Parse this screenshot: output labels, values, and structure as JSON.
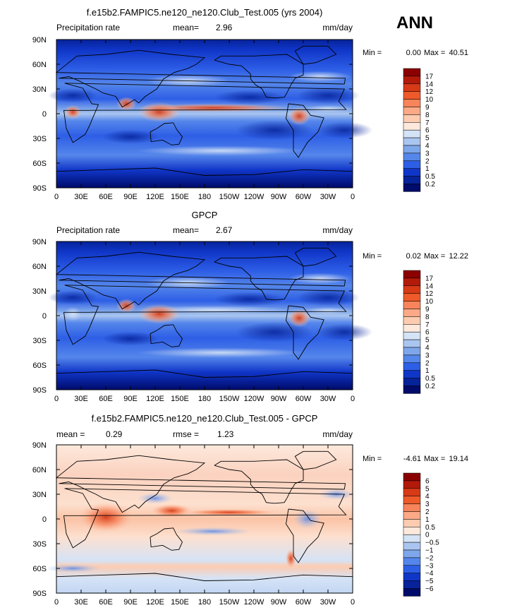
{
  "season": "ANN",
  "chart_data": [
    {
      "type": "heatmap",
      "title": "f.e15b2.FAMPIC5.ne120_ne120.Club_Test.005 (yrs 2004)",
      "variable": "Precipitation rate",
      "units": "mm/day",
      "stat1_label": "mean=",
      "stat1_value": "2.96",
      "stat2_label": "",
      "stat2_value": "",
      "min_label": "Min =",
      "min_value": "0.00",
      "max_label": "Max =",
      "max_value": "40.51",
      "xlabels": [
        "0",
        "30E",
        "60E",
        "90E",
        "120E",
        "150E",
        "180",
        "150W",
        "120W",
        "90W",
        "60W",
        "30W",
        "0"
      ],
      "ylabels": [
        "90N",
        "60N",
        "30N",
        "0",
        "30S",
        "60S",
        "90S"
      ],
      "xlim": [
        0,
        360
      ],
      "ylim": [
        -90,
        90
      ],
      "colorbar_levels": [
        "17",
        "14",
        "12",
        "10",
        "9",
        "8",
        "7",
        "6",
        "5",
        "4",
        "3",
        "2",
        "1",
        "0.5",
        "0.2"
      ],
      "colorbar_colors": [
        "#8b0000",
        "#b21a0a",
        "#d63a16",
        "#ee5a2a",
        "#f7845a",
        "#fba986",
        "#fdcbb0",
        "#fde9dc",
        "#d5e3f6",
        "#aac5ef",
        "#7ea6ea",
        "#5586ea",
        "#2d5ee6",
        "#1036c8",
        "#06239a",
        "#000b6a"
      ]
    },
    {
      "type": "heatmap",
      "title": "GPCP",
      "variable": "Precipitation rate",
      "units": "mm/day",
      "stat1_label": "mean=",
      "stat1_value": "2.67",
      "stat2_label": "",
      "stat2_value": "",
      "min_label": "Min =",
      "min_value": "0.02",
      "max_label": "Max =",
      "max_value": "12.22",
      "xlabels": [
        "0",
        "30E",
        "60E",
        "90E",
        "120E",
        "150E",
        "180",
        "150W",
        "120W",
        "90W",
        "60W",
        "30W",
        "0"
      ],
      "ylabels": [
        "90N",
        "60N",
        "30N",
        "0",
        "30S",
        "60S",
        "90S"
      ],
      "xlim": [
        0,
        360
      ],
      "ylim": [
        -90,
        90
      ],
      "colorbar_levels": [
        "17",
        "14",
        "12",
        "10",
        "9",
        "8",
        "7",
        "6",
        "5",
        "4",
        "3",
        "2",
        "1",
        "0.5",
        "0.2"
      ],
      "colorbar_colors": [
        "#8b0000",
        "#b21a0a",
        "#d63a16",
        "#ee5a2a",
        "#f7845a",
        "#fba986",
        "#fdcbb0",
        "#fde9dc",
        "#d5e3f6",
        "#aac5ef",
        "#7ea6ea",
        "#5586ea",
        "#2d5ee6",
        "#1036c8",
        "#06239a",
        "#000b6a"
      ]
    },
    {
      "type": "heatmap",
      "title": "f.e15b2.FAMPIC5.ne120_ne120.Club_Test.005 - GPCP",
      "variable": "",
      "units": "mm/day",
      "stat1_label": "mean =",
      "stat1_value": "0.29",
      "stat2_label": "rmse =",
      "stat2_value": "1.23",
      "min_label": "Min =",
      "min_value": "-4.61",
      "max_label": "Max =",
      "max_value": "19.14",
      "xlabels": [
        "0",
        "30E",
        "60E",
        "90E",
        "120E",
        "150E",
        "180",
        "150W",
        "120W",
        "90W",
        "60W",
        "30W",
        "0"
      ],
      "ylabels": [
        "90N",
        "60N",
        "30N",
        "0",
        "30S",
        "60S",
        "90S"
      ],
      "xlim": [
        0,
        360
      ],
      "ylim": [
        -90,
        90
      ],
      "colorbar_levels": [
        "6",
        "5",
        "4",
        "3",
        "2",
        "1",
        "0.5",
        "0",
        "−0.5",
        "−1",
        "−2",
        "−3",
        "−4",
        "−5",
        "−6"
      ],
      "colorbar_colors": [
        "#8b0000",
        "#b21a0a",
        "#d63a16",
        "#ee5a2a",
        "#f7845a",
        "#fba986",
        "#fdcbb0",
        "#fde9dc",
        "#d5e3f6",
        "#aac5ef",
        "#7ea6ea",
        "#5586ea",
        "#2d5ee6",
        "#1036c8",
        "#06239a",
        "#000b6a"
      ]
    }
  ]
}
